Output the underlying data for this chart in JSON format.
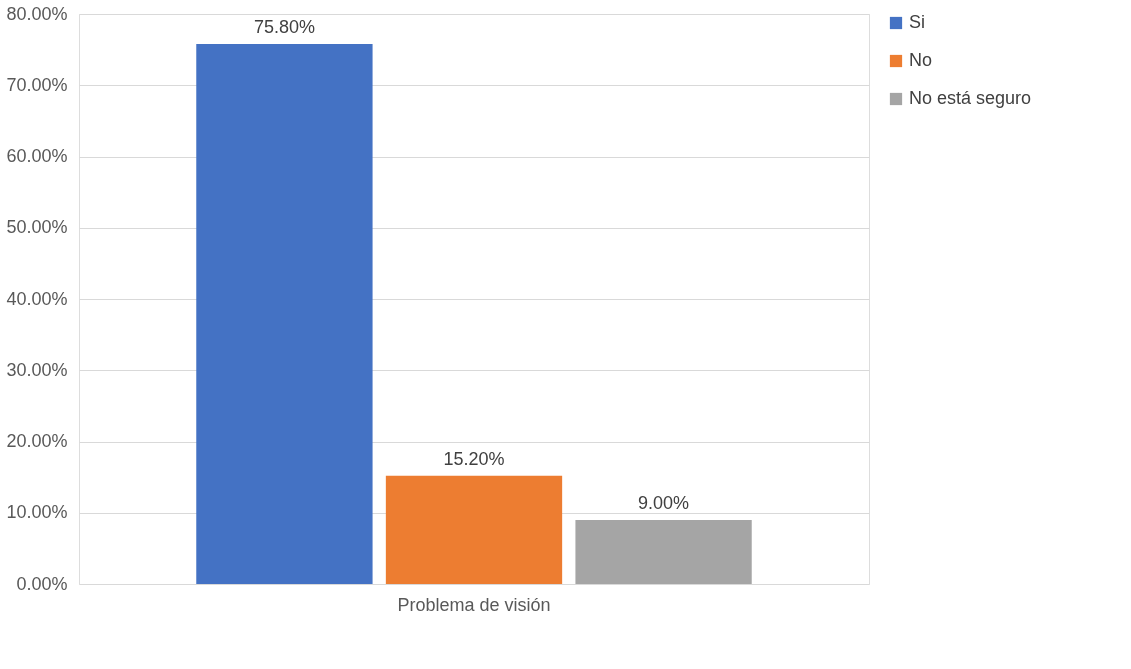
{
  "chart_data": {
    "type": "bar",
    "categories": [
      "Problema de visión"
    ],
    "series": [
      {
        "name": "Si",
        "color": "#4472c4",
        "values": [
          75.8
        ],
        "value_labels": [
          "75.80%"
        ]
      },
      {
        "name": "No",
        "color": "#ed7d31",
        "values": [
          15.2
        ],
        "value_labels": [
          "15.20%"
        ]
      },
      {
        "name": "No está seguro",
        "color": "#a5a5a5",
        "values": [
          9.0
        ],
        "value_labels": [
          "9.00%"
        ]
      }
    ],
    "ylim": [
      0,
      80
    ],
    "yticks": [
      {
        "value": 0,
        "label": "0.00%"
      },
      {
        "value": 10,
        "label": "10.00%"
      },
      {
        "value": 20,
        "label": "20.00%"
      },
      {
        "value": 30,
        "label": "30.00%"
      },
      {
        "value": 40,
        "label": "40.00%"
      },
      {
        "value": 50,
        "label": "50.00%"
      },
      {
        "value": 60,
        "label": "60.00%"
      },
      {
        "value": 70,
        "label": "70.00%"
      },
      {
        "value": 80,
        "label": "80.00%"
      }
    ],
    "grid": "y",
    "legend": "right"
  }
}
